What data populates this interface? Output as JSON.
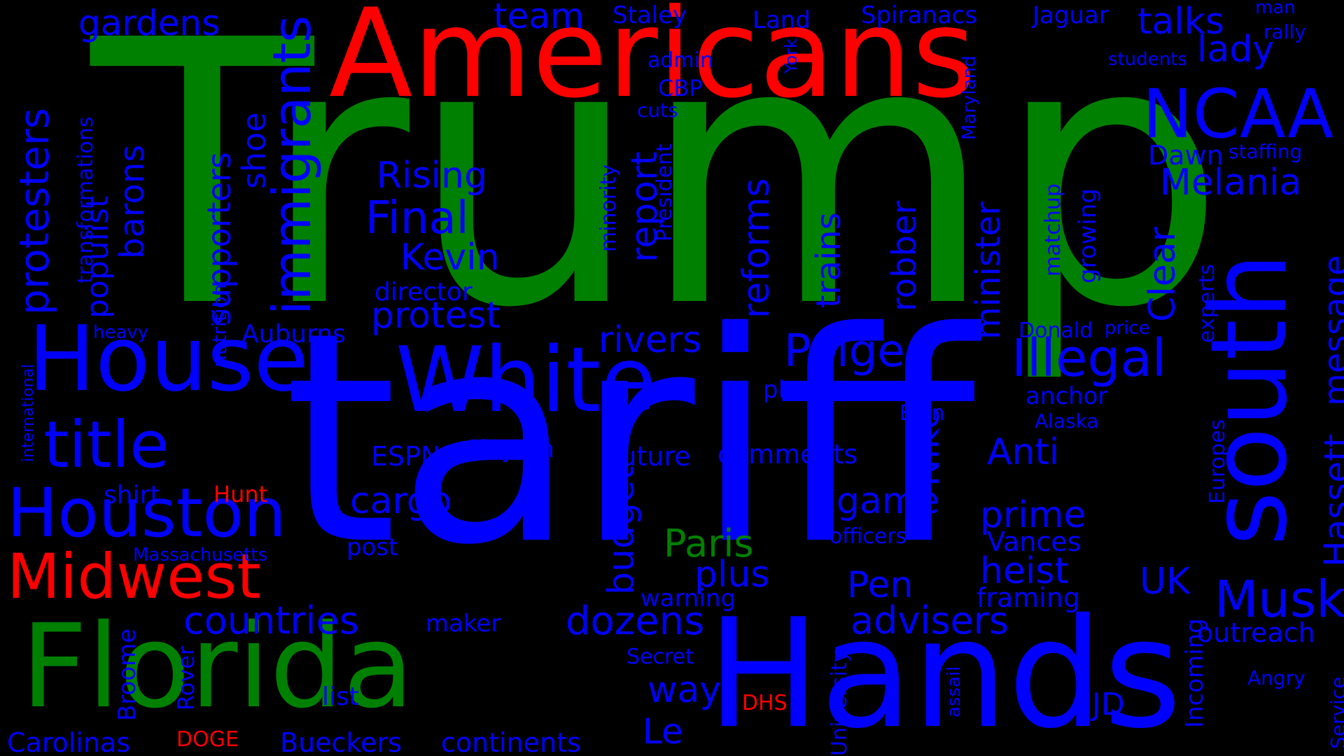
{
  "colors": {
    "background": "#000000",
    "blue": "#0000ff",
    "green": "#008000",
    "red": "#ff0000"
  },
  "words": [
    {
      "text": "Trump",
      "color": "green"
    },
    {
      "text": "tariff",
      "color": "blue"
    },
    {
      "text": "Americans",
      "color": "red"
    },
    {
      "text": "Hands",
      "color": "blue"
    },
    {
      "text": "Florida",
      "color": "green"
    },
    {
      "text": "House",
      "color": "blue"
    },
    {
      "text": "White",
      "color": "blue"
    },
    {
      "text": "south",
      "color": "blue"
    },
    {
      "text": "Houston",
      "color": "blue"
    },
    {
      "text": "title",
      "color": "blue"
    },
    {
      "text": "Midwest",
      "color": "red"
    },
    {
      "text": "NCAA",
      "color": "blue"
    },
    {
      "text": "immigrants",
      "color": "blue"
    },
    {
      "text": "protesters",
      "color": "blue"
    },
    {
      "text": "Illegal",
      "color": "blue"
    },
    {
      "text": "Musk",
      "color": "blue"
    },
    {
      "text": "Final",
      "color": "blue"
    },
    {
      "text": "Paige",
      "color": "blue"
    },
    {
      "text": "countries",
      "color": "blue"
    },
    {
      "text": "dozens",
      "color": "blue"
    },
    {
      "text": "advisers",
      "color": "blue"
    },
    {
      "text": "Melania",
      "color": "blue"
    },
    {
      "text": "Hassett",
      "color": "blue"
    },
    {
      "text": "message",
      "color": "blue"
    },
    {
      "text": "gardens",
      "color": "blue"
    },
    {
      "text": "talks",
      "color": "blue"
    },
    {
      "text": "protest",
      "color": "blue"
    },
    {
      "text": "Kevin",
      "color": "blue"
    },
    {
      "text": "Rising",
      "color": "blue"
    },
    {
      "text": "supporters",
      "color": "blue"
    },
    {
      "text": "populist",
      "color": "blue"
    },
    {
      "text": "barons",
      "color": "blue"
    },
    {
      "text": "shoe",
      "color": "blue"
    },
    {
      "text": "team",
      "color": "blue"
    },
    {
      "text": "lady",
      "color": "blue"
    },
    {
      "text": "Clear",
      "color": "blue"
    },
    {
      "text": "rivers",
      "color": "blue"
    },
    {
      "text": "Anti",
      "color": "blue"
    },
    {
      "text": "cargo",
      "color": "blue"
    },
    {
      "text": "game",
      "color": "blue"
    },
    {
      "text": "prime",
      "color": "blue"
    },
    {
      "text": "heist",
      "color": "blue"
    },
    {
      "text": "UK",
      "color": "blue"
    },
    {
      "text": "Pen",
      "color": "blue"
    },
    {
      "text": "plus",
      "color": "blue"
    },
    {
      "text": "Paris",
      "color": "green"
    },
    {
      "text": "way",
      "color": "blue"
    },
    {
      "text": "Le",
      "color": "blue"
    },
    {
      "text": "JD",
      "color": "blue"
    },
    {
      "text": "outreach",
      "color": "blue"
    },
    {
      "text": "Vances",
      "color": "blue"
    },
    {
      "text": "framing",
      "color": "blue"
    },
    {
      "text": "comments",
      "color": "blue"
    },
    {
      "text": "future",
      "color": "blue"
    },
    {
      "text": "ESPNs",
      "color": "blue"
    },
    {
      "text": "Clayton",
      "color": "blue"
    },
    {
      "text": "Auburns",
      "color": "blue"
    },
    {
      "text": "director",
      "color": "blue"
    },
    {
      "text": "Bueckers",
      "color": "blue"
    },
    {
      "text": "continents",
      "color": "blue"
    },
    {
      "text": "Carolinas",
      "color": "blue"
    },
    {
      "text": "DOGE",
      "color": "red"
    },
    {
      "text": "Hunt",
      "color": "red"
    },
    {
      "text": "shirt",
      "color": "blue"
    },
    {
      "text": "Massachusetts",
      "color": "blue"
    },
    {
      "text": "post",
      "color": "blue"
    },
    {
      "text": "list",
      "color": "blue"
    },
    {
      "text": "maker",
      "color": "blue"
    },
    {
      "text": "Secret",
      "color": "blue"
    },
    {
      "text": "DHS",
      "color": "red"
    },
    {
      "text": "warning",
      "color": "blue"
    },
    {
      "text": "officers",
      "color": "blue"
    },
    {
      "text": "Donald",
      "color": "blue"
    },
    {
      "text": "price",
      "color": "blue"
    },
    {
      "text": "anchor",
      "color": "blue"
    },
    {
      "text": "Elon",
      "color": "blue"
    },
    {
      "text": "Alaska",
      "color": "blue"
    },
    {
      "text": "plans",
      "color": "blue"
    },
    {
      "text": "heavy",
      "color": "blue"
    },
    {
      "text": "Dawn",
      "color": "blue"
    },
    {
      "text": "staffing",
      "color": "blue"
    },
    {
      "text": "students",
      "color": "blue"
    },
    {
      "text": "rally",
      "color": "blue"
    },
    {
      "text": "man",
      "color": "blue"
    },
    {
      "text": "Jaguar",
      "color": "blue"
    },
    {
      "text": "Spiranacs",
      "color": "blue"
    },
    {
      "text": "Land",
      "color": "blue"
    },
    {
      "text": "Staley",
      "color": "blue"
    },
    {
      "text": "admin",
      "color": "blue"
    },
    {
      "text": "CBP",
      "color": "blue"
    },
    {
      "text": "cuts",
      "color": "blue"
    },
    {
      "text": "Angry",
      "color": "blue"
    },
    {
      "text": "Europes",
      "color": "blue"
    },
    {
      "text": "experts",
      "color": "blue"
    },
    {
      "text": "Incoming",
      "color": "blue"
    },
    {
      "text": "Service",
      "color": "blue"
    },
    {
      "text": "assail",
      "color": "blue"
    },
    {
      "text": "University",
      "color": "blue"
    },
    {
      "text": "Rover",
      "color": "blue"
    },
    {
      "text": "Broome",
      "color": "blue"
    },
    {
      "text": "international",
      "color": "blue"
    },
    {
      "text": "nutrition",
      "color": "blue"
    },
    {
      "text": "transformations",
      "color": "blue"
    },
    {
      "text": "minority",
      "color": "blue"
    },
    {
      "text": "President",
      "color": "blue"
    },
    {
      "text": "York",
      "color": "blue"
    },
    {
      "text": "Maryland",
      "color": "blue"
    },
    {
      "text": "matchup",
      "color": "blue"
    },
    {
      "text": "growing",
      "color": "blue"
    },
    {
      "text": "minister",
      "color": "blue"
    },
    {
      "text": "robber",
      "color": "blue"
    },
    {
      "text": "Nike",
      "color": "blue"
    },
    {
      "text": "trains",
      "color": "blue"
    },
    {
      "text": "reforms",
      "color": "blue"
    },
    {
      "text": "report",
      "color": "blue"
    },
    {
      "text": "budget",
      "color": "blue"
    }
  ]
}
